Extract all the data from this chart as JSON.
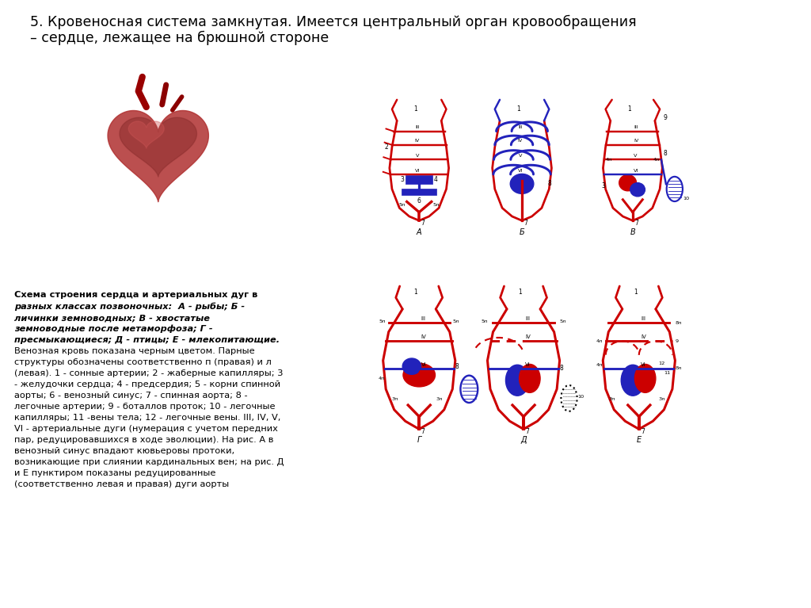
{
  "title_line1": "5. Кровеносная система замкнутая. Имеется центральный орган кровообращения",
  "title_line2": "– сердце, лежащее на брюшной стороне",
  "caption_title": "Схема строения сердца и артериальных дуг в",
  "caption_bold_italic": [
    "разных классах позвоночных:  А - рыбы; Б -",
    "личинки земноводных; В - хвостатые",
    "земноводные после метаморфоза; Г -",
    "пресмыкающиеся; Д - птицы; Е - млекопитающие."
  ],
  "caption_normal": [
    "Венозная кровь показана черным цветом. Парные",
    "структуры обозначены соответственно п (правая) и л",
    "(левая). 1 - сонные артерии; 2 - жаберные капилляры; 3",
    "- желудочки сердца; 4 - предсердия; 5 - корни спинной",
    "аорты; 6 - венозный синус; 7 - спинная аорта; 8 -",
    "легочные артерии; 9 - боталлов проток; 10 - легочные",
    "капилляры; 11 -вены тела; 12 - легочные вены. III, IV, V,",
    "VI - артериальные дуги (нумерация с учетом передних",
    "пар, редуцировавшихся в ходе эволюции). На рис. А в",
    "венозный синус впадают кювьеровы протоки,",
    "возникающие при слиянии кардинальных вен; на рис. Д",
    "и Е пунктиром показаны редуцированные",
    "(соответственно левая и правая) дуги аорты"
  ],
  "bg_color": "#ffffff",
  "red_color": "#cc0000",
  "blue_color": "#2222bb",
  "text_color": "#000000"
}
